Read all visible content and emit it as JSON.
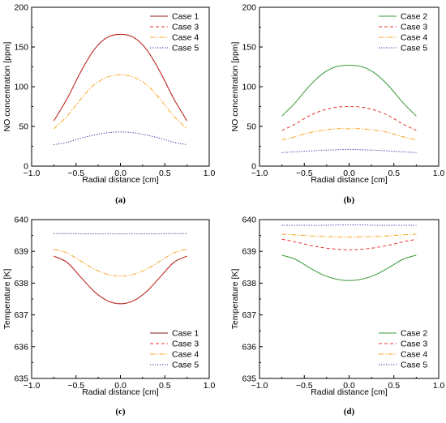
{
  "chart_data": [
    {
      "type": "line",
      "caption": "(a)",
      "xlabel": "Radial distance [cm]",
      "ylabel": "NO concentration [ppm]",
      "xlim": [
        -1.0,
        1.0
      ],
      "ylim": [
        0,
        200
      ],
      "xticks": [
        -1.0,
        -0.5,
        0.0,
        0.5,
        1.0
      ],
      "xtick_labels": [
        "−1.0",
        "−0.5",
        "0.0",
        "0.5",
        "1.0"
      ],
      "yticks": [
        0,
        50,
        100,
        150,
        200
      ],
      "ytick_labels": [
        "0",
        "50",
        "100",
        "150",
        "200"
      ],
      "grid": false,
      "legend_position": "top-right",
      "series": [
        {
          "name": "Case 1",
          "color": "#8b1a1a",
          "dash": "solid",
          "x": [
            -0.75,
            -0.6,
            -0.45,
            -0.3,
            -0.15,
            0.0,
            0.15,
            0.3,
            0.45,
            0.6,
            0.75
          ],
          "y": [
            57,
            85,
            118,
            146,
            162,
            166,
            162,
            146,
            118,
            85,
            57
          ]
        },
        {
          "name": "Case 3",
          "color": "#e8332b",
          "dash": "dash",
          "x": [
            -0.75,
            -0.6,
            -0.45,
            -0.3,
            -0.15,
            0.0,
            0.15,
            0.3,
            0.45,
            0.6,
            0.75
          ],
          "y": [
            57,
            85,
            118,
            146,
            162,
            166,
            162,
            146,
            118,
            85,
            57
          ]
        },
        {
          "name": "Case 4",
          "color": "#f5a623",
          "dash": "dashdot",
          "x": [
            -0.75,
            -0.6,
            -0.45,
            -0.3,
            -0.15,
            0.0,
            0.15,
            0.3,
            0.45,
            0.6,
            0.75
          ],
          "y": [
            47,
            63,
            84,
            102,
            112,
            115,
            112,
            102,
            84,
            63,
            47
          ]
        },
        {
          "name": "Case 5",
          "color": "#2a2aa8",
          "dash": "dot",
          "x": [
            -0.75,
            -0.6,
            -0.45,
            -0.3,
            -0.15,
            0.0,
            0.15,
            0.3,
            0.45,
            0.6,
            0.75
          ],
          "y": [
            27,
            30,
            35,
            39,
            42,
            43,
            42,
            39,
            35,
            30,
            27
          ]
        }
      ]
    },
    {
      "type": "line",
      "caption": "(b)",
      "xlabel": "Radial distance [cm]",
      "ylabel": "NO concentration [ppm]",
      "xlim": [
        -1.0,
        1.0
      ],
      "ylim": [
        0,
        200
      ],
      "xticks": [
        -1.0,
        -0.5,
        0.0,
        0.5,
        1.0
      ],
      "xtick_labels": [
        "−1.0",
        "−0.5",
        "0.0",
        "0.5",
        "1.0"
      ],
      "yticks": [
        0,
        50,
        100,
        150,
        200
      ],
      "ytick_labels": [
        "0",
        "50",
        "100",
        "150",
        "200"
      ],
      "grid": false,
      "legend_position": "top-right",
      "series": [
        {
          "name": "Case 2",
          "color": "#3a9a3a",
          "dash": "solid",
          "x": [
            -0.75,
            -0.6,
            -0.45,
            -0.3,
            -0.15,
            0.0,
            0.15,
            0.3,
            0.45,
            0.6,
            0.75
          ],
          "y": [
            63,
            80,
            100,
            116,
            125,
            127,
            125,
            116,
            100,
            80,
            63
          ]
        },
        {
          "name": "Case 3",
          "color": "#e8332b",
          "dash": "dash",
          "x": [
            -0.75,
            -0.6,
            -0.45,
            -0.3,
            -0.15,
            0.0,
            0.15,
            0.3,
            0.45,
            0.6,
            0.75
          ],
          "y": [
            45,
            53,
            63,
            70,
            74,
            75,
            74,
            70,
            63,
            53,
            45
          ]
        },
        {
          "name": "Case 4",
          "color": "#f5a623",
          "dash": "dashdot",
          "x": [
            -0.75,
            -0.6,
            -0.45,
            -0.3,
            -0.15,
            0.0,
            0.15,
            0.3,
            0.45,
            0.6,
            0.75
          ],
          "y": [
            33,
            37,
            42,
            45,
            47,
            47,
            47,
            45,
            42,
            37,
            33
          ]
        },
        {
          "name": "Case 5",
          "color": "#2a2aa8",
          "dash": "dot",
          "x": [
            -0.75,
            -0.6,
            -0.45,
            -0.3,
            -0.15,
            0.0,
            0.15,
            0.3,
            0.45,
            0.6,
            0.75
          ],
          "y": [
            17,
            18,
            19,
            20,
            20.5,
            21,
            20.5,
            20,
            19,
            18,
            17
          ]
        }
      ]
    },
    {
      "type": "line",
      "caption": "(c)",
      "xlabel": "Radial distance [cm]",
      "ylabel": "Temperature [K]",
      "xlim": [
        -1.0,
        1.0
      ],
      "ylim": [
        635,
        640
      ],
      "xticks": [
        -1.0,
        -0.5,
        0.0,
        0.5,
        1.0
      ],
      "xtick_labels": [
        "−1.0",
        "−0.5",
        "0.0",
        "0.5",
        "1.0"
      ],
      "yticks": [
        635,
        636,
        637,
        638,
        639,
        640
      ],
      "ytick_labels": [
        "635",
        "636",
        "637",
        "638",
        "639",
        "640"
      ],
      "grid": false,
      "legend_position": "bottom-right",
      "series": [
        {
          "name": "Case 1",
          "color": "#8b1a1a",
          "dash": "solid",
          "x": [
            -0.75,
            -0.6,
            -0.45,
            -0.3,
            -0.15,
            0.0,
            0.15,
            0.3,
            0.45,
            0.6,
            0.75
          ],
          "y": [
            638.85,
            638.65,
            638.2,
            637.75,
            637.45,
            637.35,
            637.45,
            637.75,
            638.2,
            638.65,
            638.85
          ]
        },
        {
          "name": "Case 3",
          "color": "#e8332b",
          "dash": "dash",
          "x": [
            -0.75,
            -0.6,
            -0.45,
            -0.3,
            -0.15,
            0.0,
            0.15,
            0.3,
            0.45,
            0.6,
            0.75
          ],
          "y": [
            638.85,
            638.65,
            638.2,
            637.75,
            637.45,
            637.35,
            637.45,
            637.75,
            638.2,
            638.65,
            638.85
          ]
        },
        {
          "name": "Case 4",
          "color": "#f5a623",
          "dash": "dashdot",
          "x": [
            -0.75,
            -0.6,
            -0.45,
            -0.3,
            -0.15,
            0.0,
            0.15,
            0.3,
            0.45,
            0.6,
            0.75
          ],
          "y": [
            639.07,
            638.95,
            638.7,
            638.45,
            638.28,
            638.22,
            638.28,
            638.45,
            638.7,
            638.95,
            639.07
          ]
        },
        {
          "name": "Case 5",
          "color": "#2a2aa8",
          "dash": "dot",
          "x": [
            -0.75,
            -0.6,
            -0.45,
            -0.3,
            -0.15,
            0.0,
            0.15,
            0.3,
            0.45,
            0.6,
            0.75
          ],
          "y": [
            639.56,
            639.56,
            639.55,
            639.55,
            639.55,
            639.55,
            639.55,
            639.55,
            639.55,
            639.56,
            639.56
          ]
        }
      ]
    },
    {
      "type": "line",
      "caption": "(d)",
      "xlabel": "Radial distance [cm]",
      "ylabel": "Temperature [K]",
      "xlim": [
        -1.0,
        1.0
      ],
      "ylim": [
        635,
        640
      ],
      "xticks": [
        -1.0,
        -0.5,
        0.0,
        0.5,
        1.0
      ],
      "xtick_labels": [
        "−1.0",
        "−0.5",
        "0.0",
        "0.5",
        "1.0"
      ],
      "yticks": [
        635,
        636,
        637,
        638,
        639,
        640
      ],
      "ytick_labels": [
        "635",
        "636",
        "637",
        "638",
        "639",
        "640"
      ],
      "grid": false,
      "legend_position": "bottom-right",
      "series": [
        {
          "name": "Case 2",
          "color": "#3a9a3a",
          "dash": "solid",
          "x": [
            -0.75,
            -0.6,
            -0.45,
            -0.3,
            -0.15,
            0.0,
            0.15,
            0.3,
            0.45,
            0.6,
            0.75
          ],
          "y": [
            638.88,
            638.75,
            638.5,
            638.27,
            638.13,
            638.08,
            638.13,
            638.27,
            638.5,
            638.75,
            638.88
          ]
        },
        {
          "name": "Case 3",
          "color": "#e8332b",
          "dash": "dash",
          "x": [
            -0.75,
            -0.6,
            -0.45,
            -0.3,
            -0.15,
            0.0,
            0.15,
            0.3,
            0.45,
            0.6,
            0.75
          ],
          "y": [
            639.38,
            639.3,
            639.2,
            639.12,
            639.07,
            639.05,
            639.07,
            639.12,
            639.2,
            639.3,
            639.38
          ]
        },
        {
          "name": "Case 4",
          "color": "#f5a623",
          "dash": "dashdot",
          "x": [
            -0.75,
            -0.6,
            -0.45,
            -0.3,
            -0.15,
            0.0,
            0.15,
            0.3,
            0.45,
            0.6,
            0.75
          ],
          "y": [
            639.54,
            639.52,
            639.49,
            639.47,
            639.46,
            639.45,
            639.46,
            639.47,
            639.49,
            639.52,
            639.54
          ]
        },
        {
          "name": "Case 5",
          "color": "#2a2aa8",
          "dash": "dot",
          "x": [
            -0.75,
            -0.6,
            -0.45,
            -0.3,
            -0.15,
            0.0,
            0.15,
            0.3,
            0.45,
            0.6,
            0.75
          ],
          "y": [
            639.82,
            639.82,
            639.82,
            639.82,
            639.83,
            639.83,
            639.83,
            639.82,
            639.82,
            639.82,
            639.82
          ]
        }
      ]
    }
  ]
}
